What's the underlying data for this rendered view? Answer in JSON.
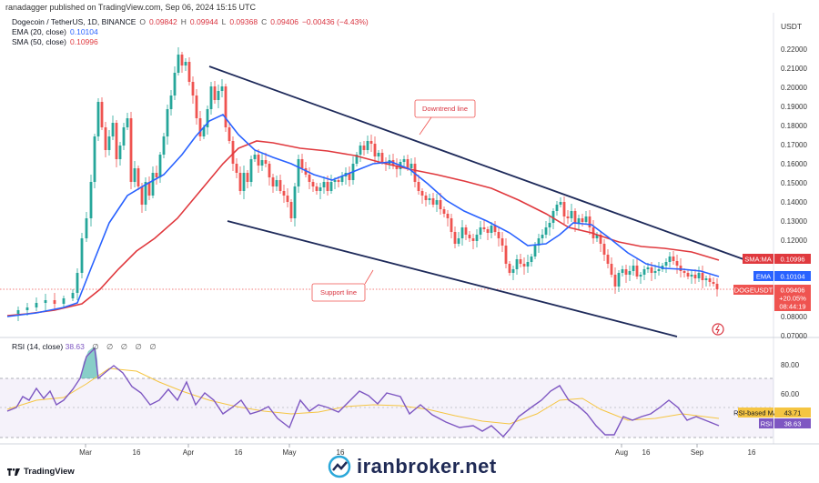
{
  "header": {
    "text": "ranadagger published on TradingView.com, Sep 06, 2024 15:15 UTC"
  },
  "legend": {
    "title": "Dogecoin / TetherUS, 1D, BINANCE",
    "o_label": "O",
    "o": "0.09842",
    "h_label": "H",
    "h": "0.09944",
    "l_label": "L",
    "l": "0.09368",
    "c_label": "C",
    "c": "0.09406",
    "change": "−0.00436 (−4.43%)",
    "ema_label": "EMA (20, close)",
    "ema_value": "0.10104",
    "sma_label": "SMA (50, close)",
    "sma_value": "0.10996"
  },
  "rsi_legend": {
    "label": "RSI (14, close)",
    "value": "38.63",
    "extra": "∅ ∅ ∅ ∅ ∅"
  },
  "currency_label": "USDT",
  "price_axis": [
    "0.22000",
    "0.21000",
    "0.20000",
    "0.19000",
    "0.18000",
    "0.17000",
    "0.16000",
    "0.15000",
    "0.14000",
    "0.13000",
    "0.12000",
    "0.08000",
    "0.07000"
  ],
  "rsi_axis": [
    "80.00",
    "60.00"
  ],
  "time_axis": [
    "Mar",
    "16",
    "Apr",
    "16",
    "May",
    "16",
    "Aug",
    "16",
    "Sep",
    "16"
  ],
  "badges": {
    "sma_label": "SMA:MA",
    "sma_value": "0.10996",
    "ema_label": "EMA",
    "ema_value": "0.10104",
    "symbol": "DOGEUSDT",
    "price": "0.09406",
    "pct": "+20.05%",
    "countdown": "08:44:19",
    "rsi_ma_label": "RSI-based MA",
    "rsi_ma_value": "43.71",
    "rsi_label": "RSI",
    "rsi_value": "38.63"
  },
  "annotations": {
    "downtrend": "Downtrend line",
    "support": "Support line"
  },
  "tv_logo": "TradingView",
  "watermark": "iranbroker.net",
  "colors": {
    "up": "#26a69a",
    "down": "#ef5350",
    "ema": "#2962ff",
    "sma": "#e0393e",
    "rsi": "#7e57c2",
    "rsi_ma": "#f5c542",
    "channel": "#1e2a5a"
  },
  "chart_data": [
    {
      "type": "candlestick",
      "series": [
        {
          "name": "EMA (20, close)",
          "last": 0.10104
        },
        {
          "name": "SMA (50, close)",
          "last": 0.10996
        }
      ],
      "annotations": [
        "Downtrend line",
        "Support line"
      ],
      "last_price": 0.09406
    },
    {
      "type": "line",
      "series": [
        {
          "name": "RSI (14, close)",
          "last": 38.63
        },
        {
          "name": "RSI-based MA",
          "last": 43.71
        }
      ],
      "ylim_labels": [
        80,
        60
      ]
    }
  ]
}
